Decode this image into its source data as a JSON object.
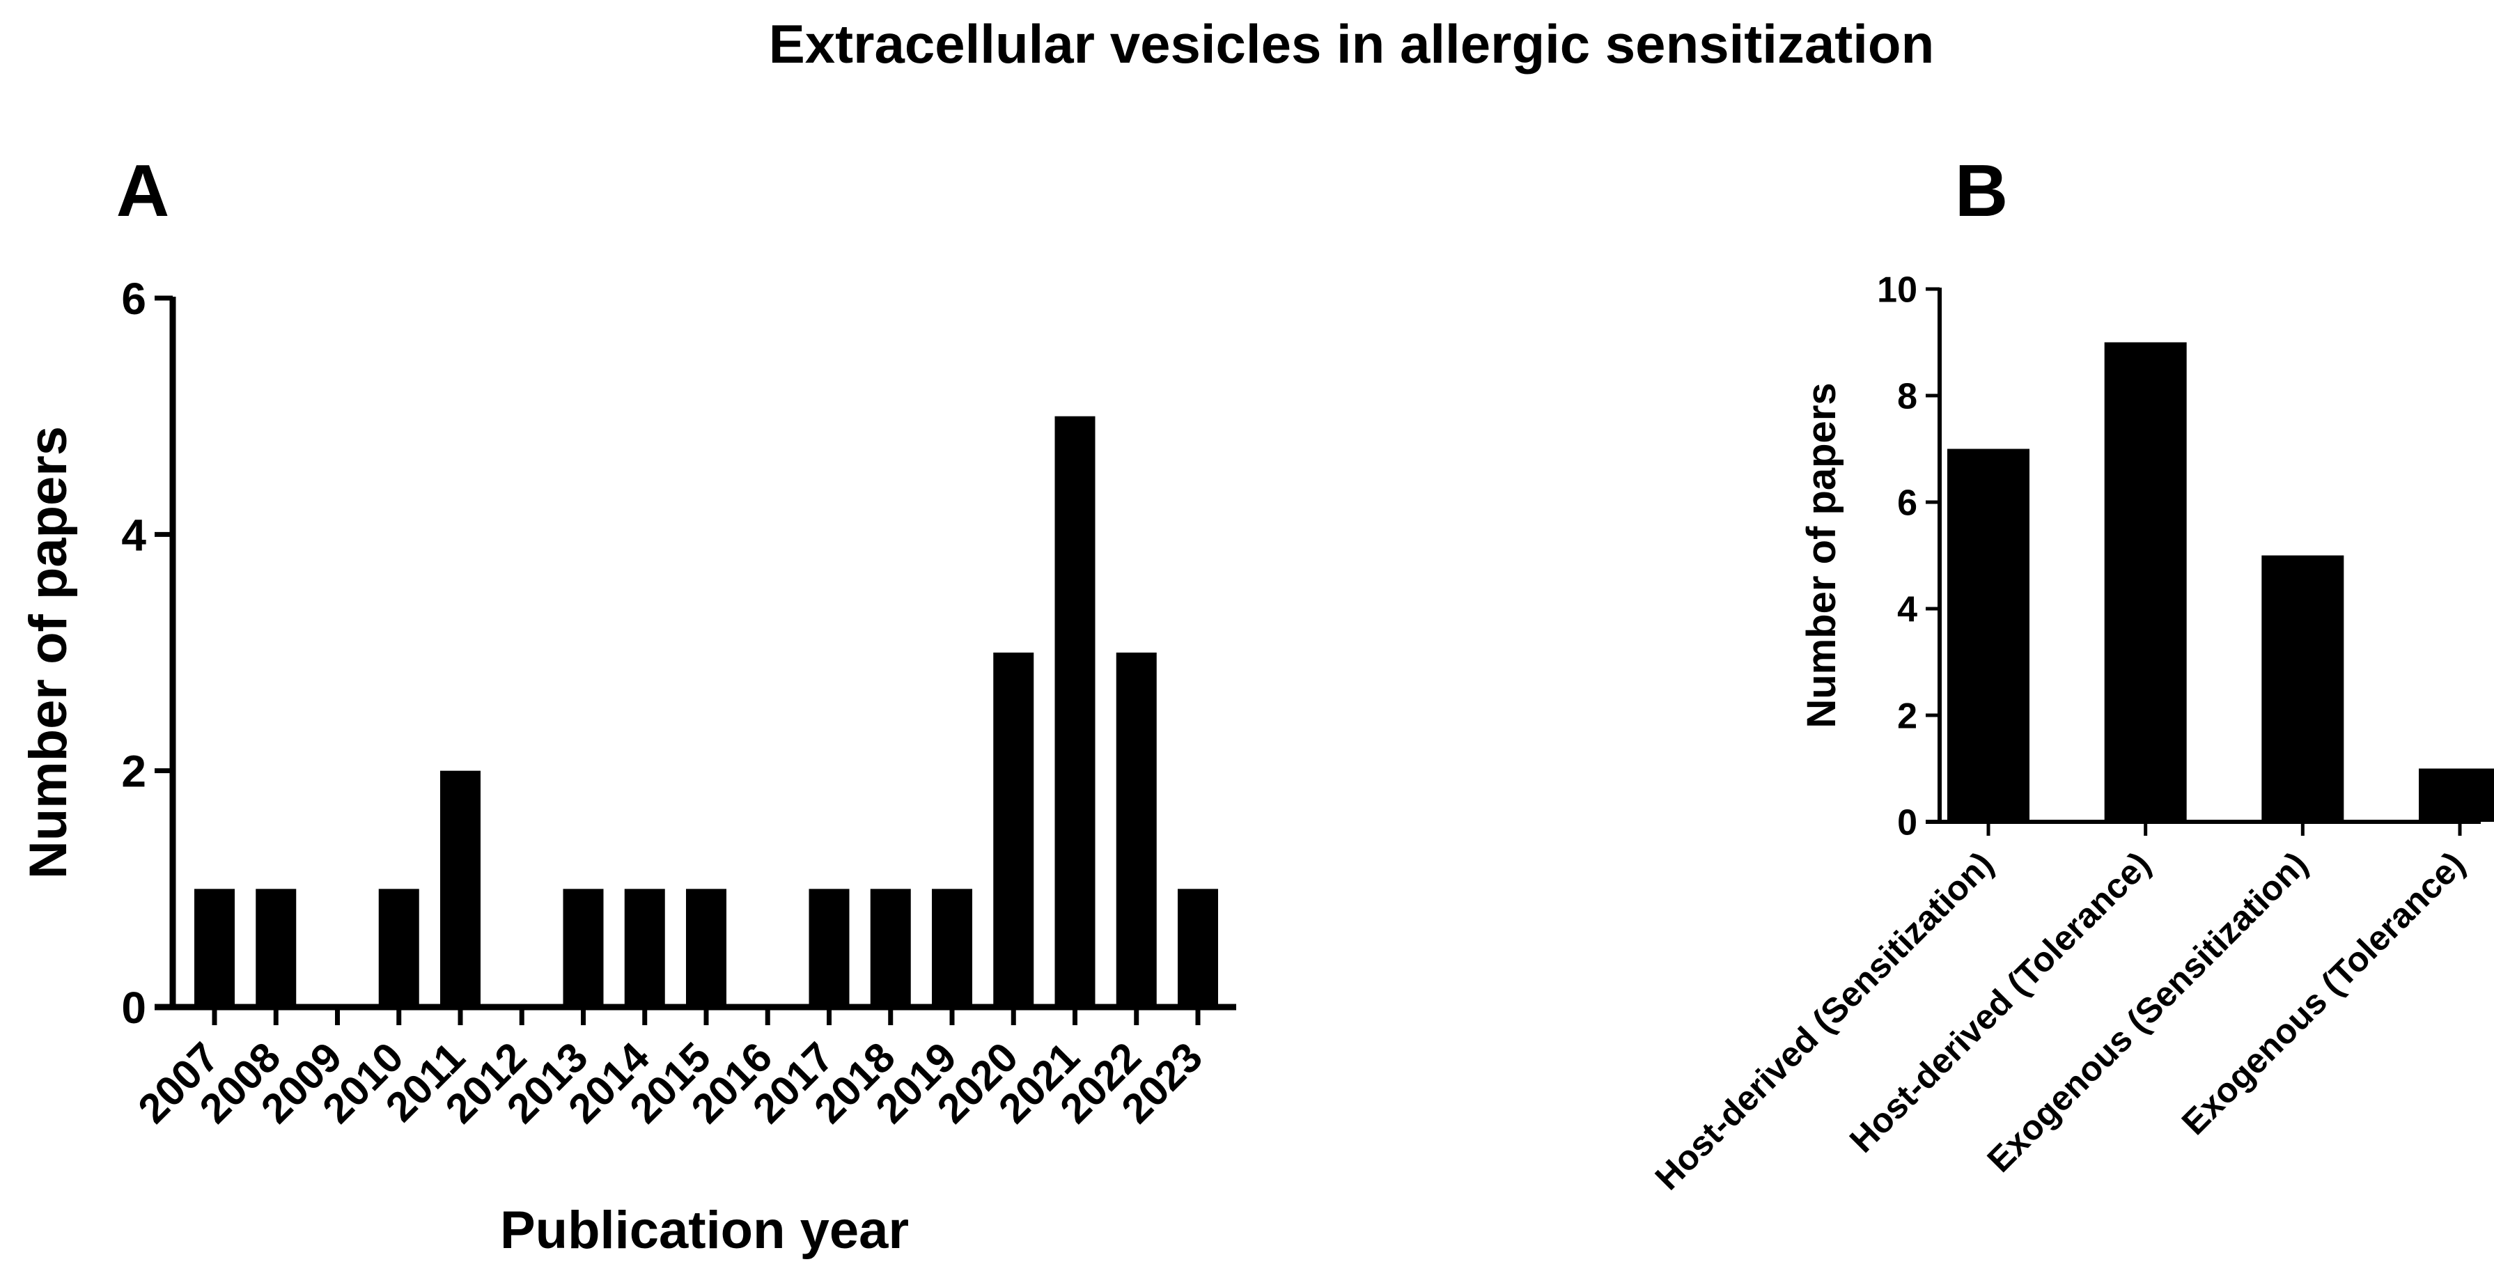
{
  "figure_title": "Extracellular vesicles in allergic sensitization",
  "chart_data": [
    {
      "panel": "A",
      "type": "bar",
      "title": "",
      "xlabel": "Publication year",
      "ylabel": "Number of papers",
      "categories": [
        "2007",
        "2008",
        "2009",
        "2010",
        "2011",
        "2012",
        "2013",
        "2014",
        "2015",
        "2016",
        "2017",
        "2018",
        "2019",
        "2020",
        "2021",
        "2022",
        "2023"
      ],
      "values": [
        1,
        1,
        0,
        1,
        2,
        0,
        1,
        1,
        1,
        0,
        1,
        1,
        1,
        3,
        5,
        3,
        1
      ],
      "ylim": [
        0,
        6
      ],
      "yticks": [
        "0",
        "2",
        "4",
        "6"
      ],
      "grid": false,
      "bar_color": "#000000"
    },
    {
      "panel": "B",
      "type": "bar",
      "title": "",
      "xlabel": "",
      "ylabel": "Number of papers",
      "categories": [
        "Host-derived (Sensitization)",
        "Host-derived (Tolerance)",
        "Exogenous (Sensitization)",
        "Exogenous (Tolerance)"
      ],
      "values": [
        7,
        9,
        5,
        1
      ],
      "ylim": [
        0,
        10
      ],
      "yticks": [
        "0",
        "2",
        "4",
        "6",
        "8",
        "10"
      ],
      "grid": false,
      "bar_color": "#000000"
    }
  ]
}
